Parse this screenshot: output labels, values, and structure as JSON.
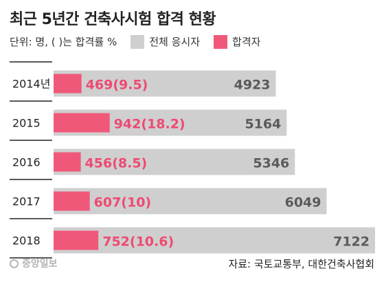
{
  "title": "최근 5년간 건축사시험 합격 현황",
  "unit_note": "단위: 명, ( )는 합격률 %",
  "legend": {
    "total_label": "전체 응시자",
    "passed_label": "합격자"
  },
  "colors": {
    "total": "#cfcfcf",
    "passed": "#f0587a",
    "passed_text": "#ee4a72",
    "total_text": "#5a5a5a",
    "divider": "#222222"
  },
  "source": "자료: 국토교통부, 대한건축사협회",
  "logo": "중앙일보",
  "chart_data": {
    "type": "bar",
    "orientation": "horizontal",
    "title": "최근 5년간 건축사시험 합격 현황",
    "categories": [
      "2014년",
      "2015",
      "2016",
      "2017",
      "2018"
    ],
    "series": [
      {
        "name": "전체 응시자",
        "values": [
          4923,
          5164,
          5346,
          6049,
          7122
        ]
      },
      {
        "name": "합격자",
        "values": [
          469,
          942,
          456,
          607,
          752
        ]
      }
    ],
    "pass_rate": [
      9.5,
      18.2,
      8.5,
      10,
      10.6
    ],
    "passed_labels": [
      "469(9.5)",
      "942(18.2)",
      "456(8.5)",
      "607(10)",
      "752(10.6)"
    ],
    "total_labels": [
      "4923",
      "5164",
      "5346",
      "6049",
      "7122"
    ],
    "xlim": [
      0,
      7122
    ],
    "grid": false
  }
}
